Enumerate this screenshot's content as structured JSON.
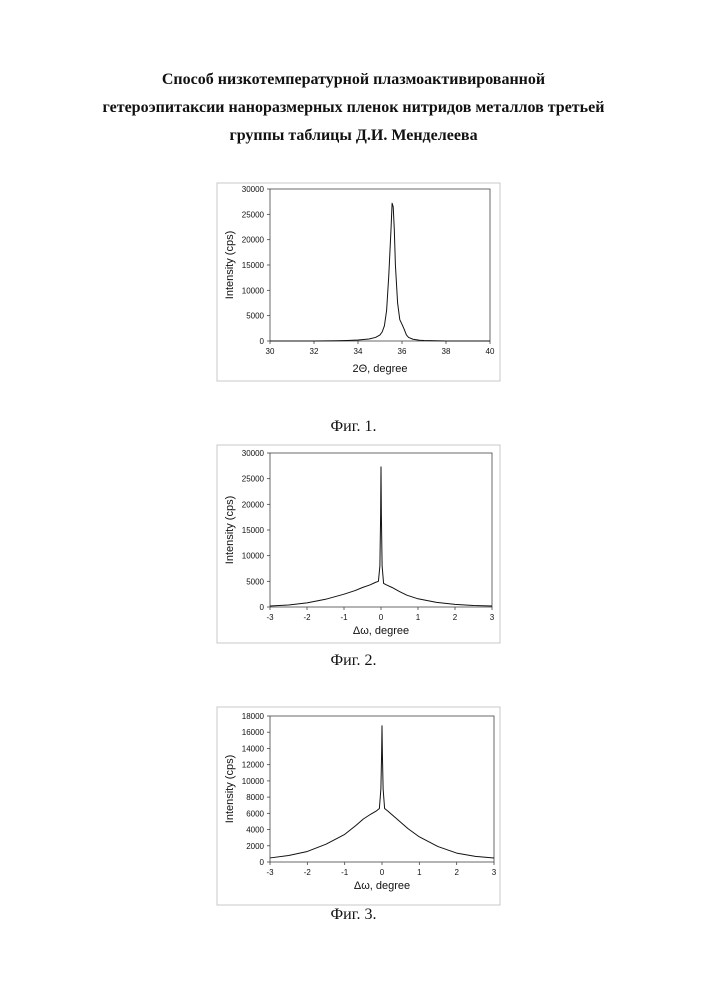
{
  "title": {
    "line1": "Способ низкотемпературной плазмоактивированной",
    "line2": "гетероэпитаксии наноразмерных пленок нитридов металлов третьей",
    "line3": "группы таблицы Д.И. Менделеева"
  },
  "captions": [
    "Фиг. 1.",
    "Фиг. 2.",
    "Фиг. 3."
  ],
  "chart_data": [
    {
      "type": "line",
      "xlabel": "2Θ, degree",
      "ylabel": "Intensity (cps)",
      "xlim": [
        30,
        40
      ],
      "ylim": [
        0,
        30000
      ],
      "xticks": [
        30,
        32,
        34,
        36,
        38,
        40
      ],
      "yticks": [
        0,
        5000,
        10000,
        15000,
        20000,
        25000,
        30000
      ],
      "grid": false,
      "series": [
        {
          "x": [
            30,
            31,
            32,
            33,
            33.5,
            34,
            34.5,
            34.8,
            35.0,
            35.1,
            35.2,
            35.3,
            35.4,
            35.5,
            35.55,
            35.6,
            35.65,
            35.7,
            35.8,
            35.9,
            36.0,
            36.1,
            36.2,
            36.3,
            36.5,
            36.8,
            37,
            37.5,
            38,
            39,
            40
          ],
          "values": [
            0,
            0,
            0,
            50,
            100,
            200,
            400,
            700,
            1200,
            1800,
            3000,
            6000,
            13000,
            22000,
            27200,
            26500,
            22000,
            15000,
            7500,
            4200,
            3300,
            2300,
            1200,
            700,
            350,
            150,
            100,
            50,
            0,
            0,
            0
          ]
        }
      ]
    },
    {
      "type": "line",
      "xlabel": "Δω, degree",
      "ylabel": "Intensity (cps)",
      "xlim": [
        -3,
        3
      ],
      "ylim": [
        0,
        30000
      ],
      "xticks": [
        -3,
        -2,
        -1,
        0,
        1,
        2,
        3
      ],
      "yticks": [
        0,
        5000,
        10000,
        15000,
        20000,
        25000,
        30000
      ],
      "grid": false,
      "series": [
        {
          "x": [
            -3,
            -2.5,
            -2,
            -1.5,
            -1,
            -0.7,
            -0.5,
            -0.3,
            -0.15,
            -0.07,
            -0.03,
            -0.01,
            0,
            0.01,
            0.03,
            0.07,
            0.15,
            0.3,
            0.5,
            0.7,
            1,
            1.5,
            2,
            2.5,
            3
          ],
          "values": [
            200,
            400,
            800,
            1500,
            2500,
            3200,
            3800,
            4300,
            4800,
            5000,
            8000,
            18000,
            27300,
            18000,
            8000,
            4600,
            4300,
            3800,
            3000,
            2300,
            1600,
            900,
            500,
            300,
            200
          ]
        }
      ]
    },
    {
      "type": "line",
      "xlabel": "Δω, degree",
      "ylabel": "Intensity (cps)",
      "xlim": [
        -3,
        3
      ],
      "ylim": [
        0,
        18000
      ],
      "xticks": [
        -3,
        -2,
        -1,
        0,
        1,
        2,
        3
      ],
      "yticks": [
        0,
        2000,
        4000,
        6000,
        8000,
        10000,
        12000,
        14000,
        16000,
        18000
      ],
      "grid": false,
      "series": [
        {
          "x": [
            -3,
            -2.5,
            -2,
            -1.5,
            -1,
            -0.7,
            -0.5,
            -0.3,
            -0.15,
            -0.07,
            -0.03,
            -0.01,
            0,
            0.01,
            0.03,
            0.07,
            0.15,
            0.3,
            0.5,
            0.7,
            1,
            1.5,
            2,
            2.5,
            3
          ],
          "values": [
            500,
            800,
            1300,
            2200,
            3400,
            4500,
            5300,
            5900,
            6300,
            6600,
            9000,
            13500,
            16800,
            13500,
            9000,
            6600,
            6300,
            5700,
            4900,
            4100,
            3100,
            1900,
            1100,
            700,
            500
          ]
        }
      ]
    }
  ]
}
